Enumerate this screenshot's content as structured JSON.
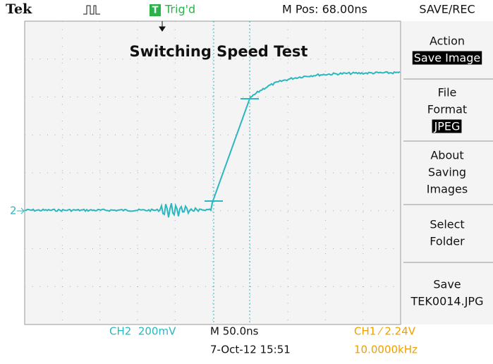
{
  "header": {
    "brand": "Tek",
    "trigger_icon": "T",
    "trigger_status": "Trig'd",
    "position": "M Pos: 68.00ns",
    "menu_title": "SAVE/REC"
  },
  "title": "Switching Speed Test",
  "channel_marker": "2",
  "menu": [
    {
      "lines": [
        "Action"
      ],
      "highlight": "Save Image"
    },
    {
      "lines": [
        "File",
        "Format"
      ],
      "highlight": "JPEG"
    },
    {
      "lines": [
        "About",
        "Saving",
        "Images"
      ]
    },
    {
      "lines": [
        "Select",
        "Folder"
      ]
    },
    {
      "lines": [
        "Save",
        "TEK0014.JPG"
      ]
    }
  ],
  "footer": {
    "ch2": "CH2  200mV",
    "timebase": "M 50.0ns",
    "datetime": "7-Oct-12 15:51",
    "ch1": "CH1 ⁄ 2.24V",
    "frequency": "10.0000kHz"
  }
}
